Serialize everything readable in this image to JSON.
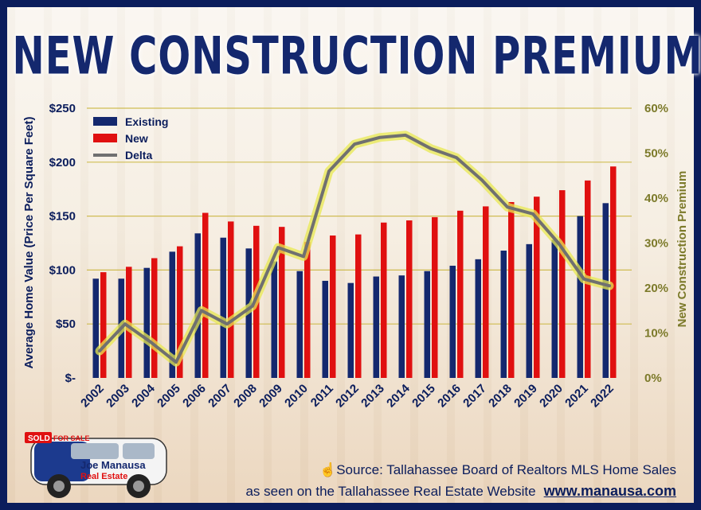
{
  "title": "NEW CONSTRUCTION PREMIUM",
  "source": {
    "line1": "Source: Tallahassee Board of Realtors MLS Home Sales",
    "line2": "as seen on the Tallahassee Real Estate Website",
    "url": "www.manausa.com"
  },
  "car": {
    "brand_line1": "Joe Manausa",
    "brand_line2": "Real Estate",
    "sold_label": "SOLD",
    "sale_label": "FOR SALE"
  },
  "colors": {
    "existing": "#14286e",
    "new": "#e01010",
    "delta": "#707070",
    "delta_glow": "#e8e850",
    "frame": "#0b1d5c"
  },
  "chart_data": {
    "type": "bar",
    "categories": [
      "2002",
      "2003",
      "2004",
      "2005",
      "2006",
      "2007",
      "2008",
      "2009",
      "2010",
      "2011",
      "2012",
      "2013",
      "2014",
      "2015",
      "2016",
      "2017",
      "2018",
      "2019",
      "2020",
      "2021",
      "2022"
    ],
    "series": [
      {
        "name": "Existing",
        "type": "bar",
        "axis": "left",
        "values": [
          92,
          92,
          102,
          117,
          134,
          130,
          120,
          108,
          99,
          90,
          88,
          94,
          95,
          99,
          104,
          110,
          118,
          124,
          128,
          150,
          162
        ]
      },
      {
        "name": "New",
        "type": "bar",
        "axis": "left",
        "values": [
          98,
          103,
          111,
          122,
          153,
          145,
          141,
          140,
          126,
          132,
          133,
          144,
          146,
          149,
          155,
          159,
          163,
          168,
          174,
          183,
          196
        ]
      },
      {
        "name": "Delta",
        "type": "line",
        "axis": "right",
        "values": [
          0.06,
          0.12,
          0.08,
          0.035,
          0.15,
          0.12,
          0.16,
          0.29,
          0.27,
          0.46,
          0.52,
          0.535,
          0.54,
          0.51,
          0.49,
          0.44,
          0.38,
          0.365,
          0.3,
          0.22,
          0.205
        ]
      }
    ],
    "ylabel": "Average Home Value (Price Per Square Feet)",
    "y2label": "New Construction Premium",
    "ylim": [
      0,
      250
    ],
    "y2lim": [
      0,
      0.6
    ],
    "yticks": [
      "$-",
      "$50",
      "$100",
      "$150",
      "$200",
      "$250"
    ],
    "y2ticks": [
      "0%",
      "10%",
      "20%",
      "30%",
      "40%",
      "50%",
      "60%"
    ],
    "grid": true,
    "legend": "top-left"
  }
}
